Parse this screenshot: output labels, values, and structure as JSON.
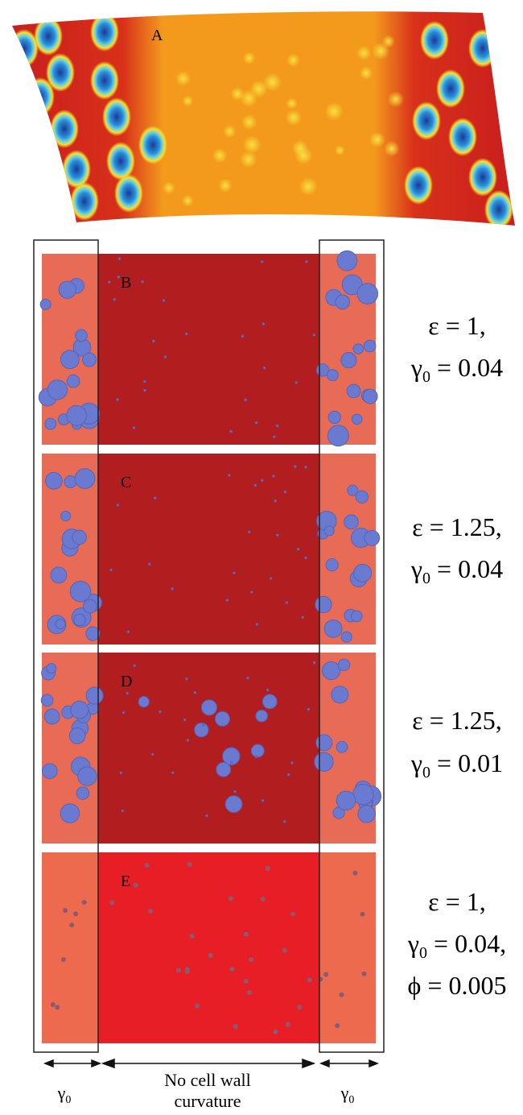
{
  "panel_a": {
    "label": "A"
  },
  "panels": [
    {
      "label": "B",
      "params": [
        {
          "text": "ε = 1,"
        },
        {
          "symbol": "γ",
          "sub": "0",
          "text": " = 0.04"
        }
      ]
    },
    {
      "label": "C",
      "params": [
        {
          "text": "ε = 1.25,"
        },
        {
          "symbol": "γ",
          "sub": "0",
          "text": " = 0.04"
        }
      ]
    },
    {
      "label": "D",
      "params": [
        {
          "text": "ε = 1.25,"
        },
        {
          "symbol": "γ",
          "sub": "0",
          "text": " = 0.01"
        }
      ]
    },
    {
      "label": "E",
      "params": [
        {
          "text": "ε = 1,"
        },
        {
          "symbol": "γ",
          "sub": "0",
          "text": " = 0.04,"
        },
        {
          "text": "ϕ = 0.005"
        }
      ]
    }
  ],
  "annotations": {
    "left": {
      "symbol": "γ",
      "sub": "0"
    },
    "center": [
      "No cell wall",
      "curvature"
    ],
    "right": {
      "symbol": "γ",
      "sub": "0"
    }
  }
}
